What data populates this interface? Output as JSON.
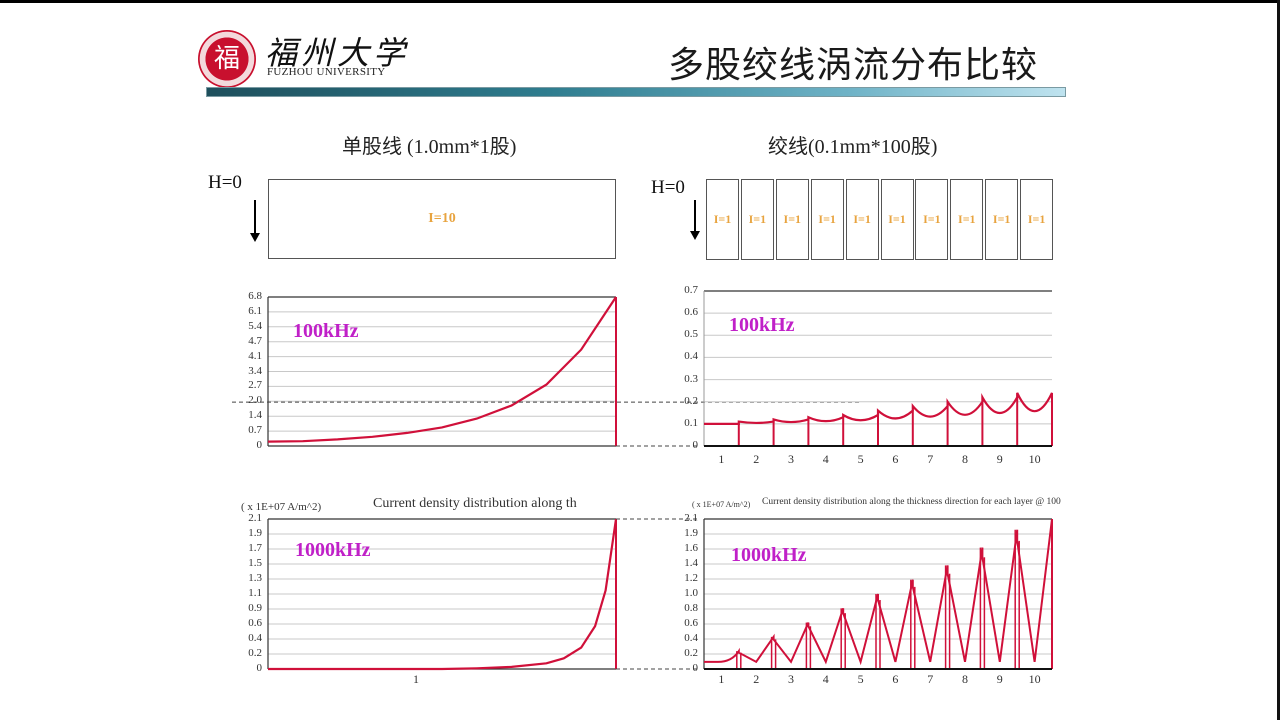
{
  "header": {
    "logo_char": "福",
    "university_cn": "福州大学",
    "university_en": "FUZHOU UNIVERSITY",
    "title": "多股绞线涡流分布比较"
  },
  "left": {
    "heading": "单股线 (1.0mm*1股)",
    "h_label": "H=0",
    "conductor_label": "I=10"
  },
  "right": {
    "heading": "绞线(0.1mm*100股)",
    "h_label": "H=0",
    "strand_labels": [
      "I=1",
      "I=1",
      "I=1",
      "I=1",
      "I=1",
      "I=1",
      "I=1",
      "I=1",
      "I=1",
      "I=1"
    ]
  },
  "colors": {
    "curve": "#d0103a",
    "freq_label": "#c020c8",
    "current_label": "#e8a440",
    "title_rule": "#2f7d8f"
  },
  "chart_data": [
    {
      "id": "single-100k",
      "type": "line",
      "title": "",
      "annotation": "100kHz",
      "xlabel": "",
      "ylabel": "",
      "yticks": [
        "6.8",
        "6.1",
        "5.4",
        "4.7",
        "4.1",
        "3.4",
        "2.7",
        "2.0",
        "1.4",
        "0.7",
        "0"
      ],
      "ylim": [
        0,
        6.8
      ],
      "xticks": [
        ""
      ],
      "x": [
        0,
        0.1,
        0.2,
        0.3,
        0.4,
        0.5,
        0.6,
        0.7,
        0.8,
        0.9,
        1.0
      ],
      "values": [
        0.2,
        0.22,
        0.3,
        0.42,
        0.6,
        0.85,
        1.25,
        1.85,
        2.8,
        4.4,
        6.8
      ],
      "reference_line": 2.0,
      "grid": true
    },
    {
      "id": "litz-100k",
      "type": "line",
      "title": "",
      "annotation": "100kHz",
      "yticks": [
        "0.7",
        "0.6",
        "0.5",
        "0.4",
        "0.3",
        "0.2",
        "0.1",
        "0"
      ],
      "ylim": [
        0,
        0.7
      ],
      "xticks": [
        "1",
        "2",
        "3",
        "4",
        "5",
        "6",
        "7",
        "8",
        "9",
        "10"
      ],
      "layer_edge_values": [
        0.1,
        0.11,
        0.12,
        0.13,
        0.14,
        0.16,
        0.18,
        0.2,
        0.22,
        0.24
      ],
      "layer_min_values": [
        0.1,
        0.1,
        0.1,
        0.1,
        0.1,
        0.1,
        0.1,
        0.1,
        0.1,
        0.1
      ],
      "reference_line": 0.2,
      "grid": true
    },
    {
      "id": "single-1000k",
      "type": "line",
      "title": "Current density distribution along th",
      "unit": "( x 1E+07 A/m^2)",
      "annotation": "1000kHz",
      "yticks": [
        "2.1",
        "1.9",
        "1.7",
        "1.5",
        "1.3",
        "1.1",
        "0.9",
        "0.6",
        "0.4",
        "0.2",
        "0"
      ],
      "ylim": [
        0,
        2.1
      ],
      "xticks": [
        "1"
      ],
      "x": [
        0,
        0.5,
        0.6,
        0.7,
        0.8,
        0.85,
        0.9,
        0.94,
        0.97,
        1.0
      ],
      "values": [
        0,
        0.0,
        0.01,
        0.03,
        0.08,
        0.15,
        0.3,
        0.6,
        1.1,
        2.1
      ],
      "grid": true
    },
    {
      "id": "litz-1000k",
      "type": "line",
      "title": "Current density distribution along the thickness direction for each layer @ 100",
      "unit": "( x 1E+07 A/m^2)",
      "annotation": "1000kHz",
      "yticks": [
        "2.1",
        "1.9",
        "1.6",
        "1.4",
        "1.2",
        "1.0",
        "0.8",
        "0.6",
        "0.4",
        "0.2",
        "0"
      ],
      "ylim": [
        0,
        2.1
      ],
      "xticks": [
        "1",
        "2",
        "3",
        "4",
        "5",
        "6",
        "7",
        "8",
        "9",
        "10"
      ],
      "layer_peak_values": [
        0.25,
        0.45,
        0.65,
        0.85,
        1.05,
        1.25,
        1.45,
        1.7,
        1.95,
        2.1
      ],
      "layer_min_values": [
        0.1,
        0.1,
        0.1,
        0.1,
        0.1,
        0.1,
        0.1,
        0.1,
        0.1,
        0.1
      ],
      "grid": true
    }
  ]
}
